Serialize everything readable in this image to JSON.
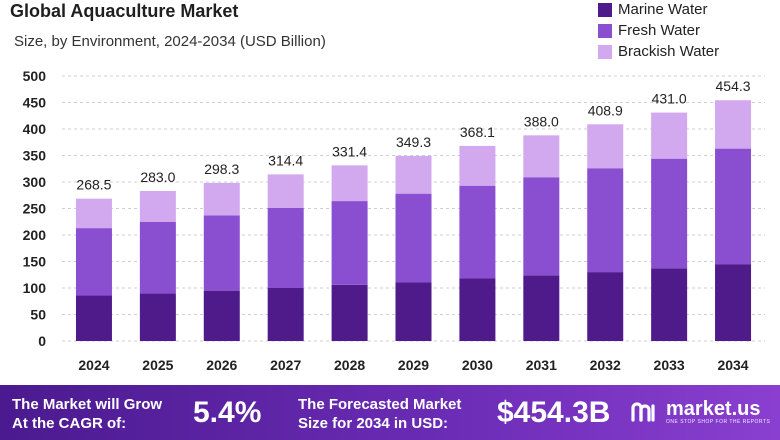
{
  "chart_data": {
    "type": "stacked-bar",
    "title": "Global Aquaculture Market",
    "subtitle": "Size, by Environment, 2024-2034 (USD Billion)",
    "categories": [
      "2024",
      "2025",
      "2026",
      "2027",
      "2028",
      "2029",
      "2030",
      "2031",
      "2032",
      "2033",
      "2034"
    ],
    "series": [
      {
        "name": "Marine Water",
        "color": "#4f1a8a",
        "values": [
          86,
          90,
          95,
          100,
          106,
          111,
          118,
          124,
          130,
          137,
          145
        ]
      },
      {
        "name": "Fresh Water",
        "color": "#8a4fd0",
        "values": [
          127,
          135,
          142,
          151,
          158,
          167,
          175,
          185,
          196,
          207,
          218
        ]
      },
      {
        "name": "Brackish Water",
        "color": "#d2a8ee",
        "values": [
          55.5,
          58,
          61.3,
          63.4,
          67.4,
          71.3,
          75.1,
          79,
          82.9,
          87,
          91.3
        ]
      }
    ],
    "totals": [
      "268.5",
      "283.0",
      "298.3",
      "314.4",
      "331.4",
      "349.3",
      "368.1",
      "388.0",
      "408.9",
      "431.0",
      "454.3"
    ],
    "yticks": [
      0,
      50,
      100,
      150,
      200,
      250,
      300,
      350,
      400,
      450,
      500
    ],
    "ylim": [
      0,
      500
    ],
    "grid": true,
    "legend": "top-right"
  },
  "footer": {
    "cagr_label_1": "The Market will Grow",
    "cagr_label_2": "At the CAGR of:",
    "cagr_value": "5.4%",
    "forecast_label_1": "The Forecasted Market",
    "forecast_label_2": "Size for 2034 in USD:",
    "forecast_value": "$454.3B",
    "brand": "market.us",
    "tagline": "ONE STOP SHOP FOR THE REPORTS"
  }
}
